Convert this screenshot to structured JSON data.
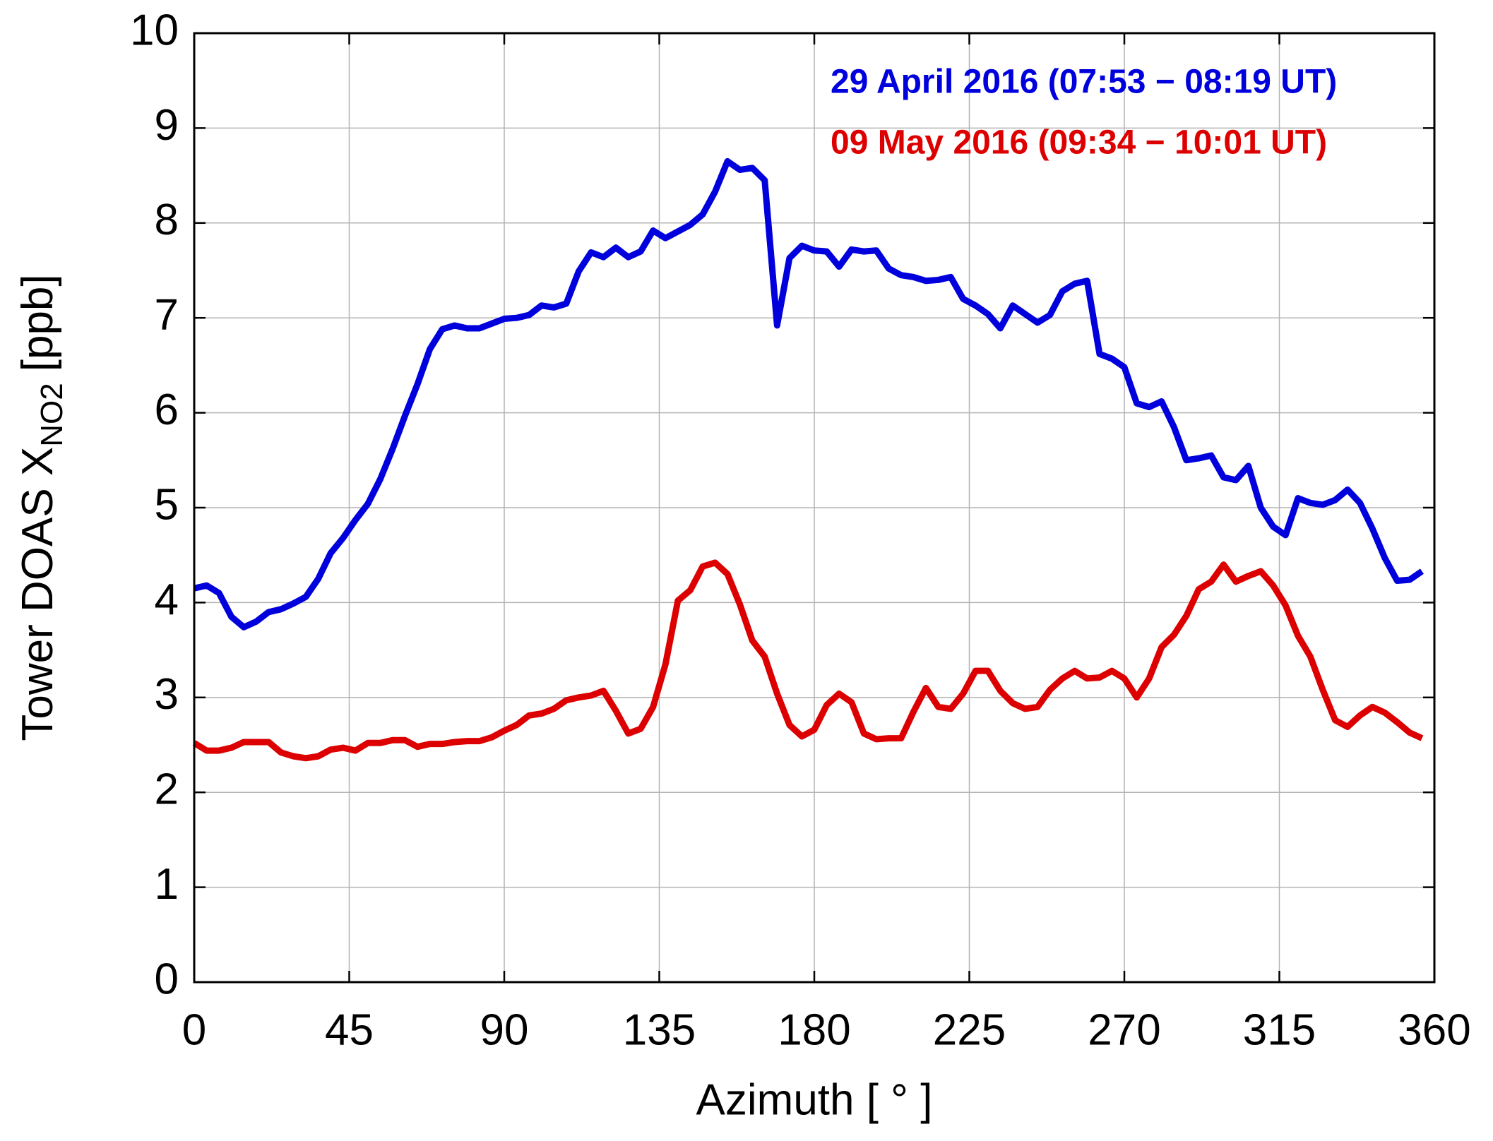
{
  "chart_data": {
    "type": "line",
    "xlabel": "Azimuth [ ° ]",
    "ylabel": "Tower DOAS X",
    "ylabel_sub": "NO2",
    "ylabel_unit": "[ppb]",
    "x": [
      0,
      3.6,
      7.2,
      10.8,
      14.4,
      18,
      21.6,
      25.2,
      28.8,
      32.4,
      36,
      39.6,
      43.2,
      46.8,
      50.4,
      54,
      57.6,
      61.2,
      64.8,
      68.4,
      72,
      75.6,
      79.2,
      82.8,
      86.4,
      90,
      93.6,
      97.2,
      100.8,
      104.4,
      108,
      111.6,
      115.2,
      118.8,
      122.4,
      126,
      129.6,
      133.2,
      136.8,
      140.4,
      144,
      147.6,
      151.2,
      154.8,
      158.4,
      162,
      165.6,
      169.2,
      172.8,
      176.4,
      180,
      183.6,
      187.2,
      190.8,
      194.4,
      198,
      201.6,
      205.2,
      208.8,
      212.4,
      216,
      219.6,
      223.2,
      226.8,
      230.4,
      234,
      237.6,
      241.2,
      244.8,
      248.4,
      252,
      255.6,
      259.2,
      262.8,
      266.4,
      270,
      273.6,
      277.2,
      280.8,
      284.4,
      288,
      291.6,
      295.2,
      298.8,
      302.4,
      306,
      309.6,
      313.2,
      316.8,
      320.4,
      324,
      327.6,
      331.2,
      334.8,
      338.4,
      342,
      345.6,
      349.2,
      352.8,
      356.4
    ],
    "series": [
      {
        "name": "29 April 2016 (07:53 − 08:19 UT)",
        "color": "#0000dd",
        "values": [
          4.15,
          4.18,
          4.1,
          3.85,
          3.74,
          3.8,
          3.9,
          3.93,
          3.99,
          4.06,
          4.25,
          4.52,
          4.68,
          4.87,
          5.04,
          5.3,
          5.62,
          5.97,
          6.3,
          6.67,
          6.88,
          6.92,
          6.89,
          6.89,
          6.94,
          6.99,
          7.0,
          7.03,
          7.13,
          7.11,
          7.15,
          7.49,
          7.69,
          7.64,
          7.74,
          7.64,
          7.7,
          7.92,
          7.84,
          7.91,
          7.98,
          8.09,
          8.33,
          8.65,
          8.56,
          8.58,
          8.45,
          6.92,
          7.63,
          7.76,
          7.71,
          7.7,
          7.54,
          7.72,
          7.7,
          7.71,
          7.52,
          7.45,
          7.43,
          7.39,
          7.4,
          7.43,
          7.2,
          7.13,
          7.04,
          6.89,
          7.13,
          7.04,
          6.95,
          7.03,
          7.28,
          7.36,
          7.39,
          6.62,
          6.57,
          6.48,
          6.1,
          6.06,
          6.12,
          5.85,
          5.5,
          5.52,
          5.55,
          5.32,
          5.29,
          5.44,
          5.0,
          4.8,
          4.71,
          5.1,
          5.05,
          5.03,
          5.08,
          5.19,
          5.05,
          4.78,
          4.47,
          4.23,
          4.24,
          4.33
        ]
      },
      {
        "name": "09 May 2016 (09:34 − 10:01 UT)",
        "color": "#dd0000",
        "values": [
          2.52,
          2.44,
          2.44,
          2.47,
          2.53,
          2.53,
          2.53,
          2.42,
          2.38,
          2.36,
          2.38,
          2.45,
          2.47,
          2.44,
          2.52,
          2.52,
          2.55,
          2.55,
          2.48,
          2.51,
          2.51,
          2.53,
          2.54,
          2.54,
          2.58,
          2.65,
          2.71,
          2.81,
          2.83,
          2.88,
          2.97,
          3.0,
          3.02,
          3.07,
          2.86,
          2.62,
          2.67,
          2.9,
          3.35,
          4.02,
          4.13,
          4.38,
          4.42,
          4.3,
          3.98,
          3.6,
          3.43,
          3.04,
          2.71,
          2.59,
          2.66,
          2.92,
          3.04,
          2.95,
          2.62,
          2.56,
          2.57,
          2.57,
          2.85,
          3.1,
          2.9,
          2.88,
          3.04,
          3.28,
          3.28,
          3.07,
          2.94,
          2.88,
          2.9,
          3.08,
          3.2,
          3.28,
          3.2,
          3.21,
          3.28,
          3.2,
          3.0,
          3.2,
          3.53,
          3.66,
          3.86,
          4.14,
          4.22,
          4.4,
          4.22,
          4.28,
          4.33,
          4.18,
          3.97,
          3.65,
          3.43,
          3.08,
          2.76,
          2.69,
          2.81,
          2.9,
          2.84,
          2.74,
          2.63,
          2.57
        ]
      }
    ],
    "xlim": [
      0,
      360
    ],
    "xticks": [
      0,
      45,
      90,
      135,
      180,
      225,
      270,
      315,
      360
    ],
    "ylim": [
      0,
      10
    ],
    "yticks": [
      0,
      1,
      2,
      3,
      4,
      5,
      6,
      7,
      8,
      9,
      10
    ],
    "grid": true,
    "legend": "upper right"
  }
}
